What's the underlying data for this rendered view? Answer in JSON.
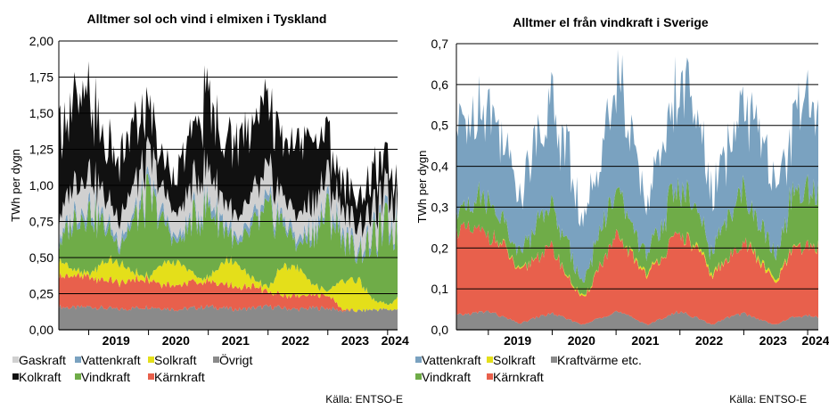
{
  "colors": {
    "Gaskraft": "#d0d0d0",
    "Vattenkraft": "#7aa2c0",
    "Solkraft": "#e4df1a",
    "Övrigt": "#8a8a8a",
    "Kolkraft": "#111111",
    "Vindkraft": "#6fac48",
    "Kärnkraft": "#e8604c",
    "Kraftvärme etc.": "#8a8a8a"
  },
  "chart_data": [
    {
      "type": "area",
      "title": "Alltmer sol och vind i elmixen i Tyskland",
      "ylabel": "TWh per dygn",
      "ylim": [
        0,
        2.0
      ],
      "yticks": [
        "0,00",
        "0,25",
        "0,50",
        "0,75",
        "1,00",
        "1,25",
        "1,50",
        "1,75",
        "2,00"
      ],
      "x_labels": [
        "2019",
        "2020",
        "2021",
        "2022",
        "2023",
        "2024"
      ],
      "x_range": [
        "2018-07",
        "2024-03"
      ],
      "legend": [
        "Gaskraft",
        "Vattenkraft",
        "Solkraft",
        "Övrigt",
        "Kolkraft",
        "Vindkraft",
        "Kärnkraft"
      ],
      "stack_order": [
        "Övrigt",
        "Kärnkraft",
        "Solkraft",
        "Vindkraft",
        "Vattenkraft",
        "Gaskraft",
        "Kolkraft"
      ],
      "x": [
        "2018-07",
        "2018-10",
        "2019-01",
        "2019-04",
        "2019-07",
        "2019-10",
        "2020-01",
        "2020-04",
        "2020-07",
        "2020-10",
        "2021-01",
        "2021-04",
        "2021-07",
        "2021-10",
        "2022-01",
        "2022-04",
        "2022-07",
        "2022-10",
        "2023-01",
        "2023-04",
        "2023-07",
        "2023-10",
        "2024-01",
        "2024-03"
      ],
      "series": [
        {
          "name": "Övrigt",
          "values": [
            0.16,
            0.15,
            0.16,
            0.15,
            0.14,
            0.15,
            0.16,
            0.15,
            0.14,
            0.15,
            0.16,
            0.15,
            0.14,
            0.15,
            0.16,
            0.15,
            0.14,
            0.15,
            0.15,
            0.13,
            0.13,
            0.14,
            0.14,
            0.14
          ]
        },
        {
          "name": "Kärnkraft",
          "values": [
            0.21,
            0.22,
            0.2,
            0.2,
            0.18,
            0.2,
            0.19,
            0.17,
            0.17,
            0.18,
            0.17,
            0.16,
            0.15,
            0.16,
            0.1,
            0.09,
            0.09,
            0.09,
            0.09,
            0.01,
            0.0,
            0.0,
            0.0,
            0.0
          ]
        },
        {
          "name": "Solkraft",
          "values": [
            0.12,
            0.04,
            0.02,
            0.13,
            0.14,
            0.05,
            0.02,
            0.15,
            0.16,
            0.05,
            0.02,
            0.16,
            0.17,
            0.05,
            0.03,
            0.2,
            0.2,
            0.07,
            0.03,
            0.2,
            0.22,
            0.07,
            0.03,
            0.08
          ]
        },
        {
          "name": "Vindkraft",
          "values": [
            0.1,
            0.35,
            0.45,
            0.25,
            0.12,
            0.35,
            0.55,
            0.28,
            0.12,
            0.38,
            0.5,
            0.25,
            0.12,
            0.35,
            0.5,
            0.3,
            0.15,
            0.35,
            0.55,
            0.3,
            0.18,
            0.4,
            0.55,
            0.45
          ]
        },
        {
          "name": "Vattenkraft",
          "values": [
            0.04,
            0.05,
            0.05,
            0.05,
            0.04,
            0.05,
            0.05,
            0.05,
            0.04,
            0.05,
            0.05,
            0.05,
            0.04,
            0.05,
            0.05,
            0.05,
            0.04,
            0.05,
            0.05,
            0.05,
            0.04,
            0.05,
            0.05,
            0.05
          ]
        },
        {
          "name": "Gaskraft",
          "values": [
            0.15,
            0.2,
            0.22,
            0.15,
            0.15,
            0.2,
            0.22,
            0.16,
            0.16,
            0.22,
            0.22,
            0.15,
            0.14,
            0.18,
            0.2,
            0.15,
            0.16,
            0.18,
            0.18,
            0.15,
            0.15,
            0.16,
            0.17,
            0.15
          ]
        },
        {
          "name": "Kolkraft",
          "values": [
            0.62,
            0.55,
            0.55,
            0.35,
            0.4,
            0.4,
            0.3,
            0.2,
            0.3,
            0.35,
            0.5,
            0.4,
            0.55,
            0.5,
            0.45,
            0.4,
            0.5,
            0.45,
            0.3,
            0.2,
            0.2,
            0.25,
            0.2,
            0.15
          ]
        }
      ],
      "source": "Källa: ENTSO-E"
    },
    {
      "type": "area",
      "title": "Alltmer el från vindkraft i Sverige",
      "ylabel": "TWh per dygn",
      "ylim": [
        0,
        0.7
      ],
      "yticks": [
        "0,0",
        "0,1",
        "0,2",
        "0,3",
        "0,4",
        "0,5",
        "0,6",
        "0,7"
      ],
      "x_labels": [
        "2019",
        "2020",
        "2021",
        "2022",
        "2023",
        "2024"
      ],
      "x_range": [
        "2018-07",
        "2024-03"
      ],
      "legend": [
        "Vattenkraft",
        "Solkraft",
        "Kraftvärme etc.",
        "Vindkraft",
        "Kärnkraft"
      ],
      "stack_order": [
        "Kraftvärme etc.",
        "Kärnkraft",
        "Solkraft",
        "Vindkraft",
        "Vattenkraft"
      ],
      "x": [
        "2018-07",
        "2018-10",
        "2019-01",
        "2019-04",
        "2019-07",
        "2019-10",
        "2020-01",
        "2020-04",
        "2020-07",
        "2020-10",
        "2021-01",
        "2021-04",
        "2021-07",
        "2021-10",
        "2022-01",
        "2022-04",
        "2022-07",
        "2022-10",
        "2023-01",
        "2023-04",
        "2023-07",
        "2023-10",
        "2024-01",
        "2024-03"
      ],
      "series": [
        {
          "name": "Kraftvärme etc.",
          "values": [
            0.035,
            0.04,
            0.045,
            0.03,
            0.015,
            0.03,
            0.04,
            0.025,
            0.012,
            0.03,
            0.045,
            0.03,
            0.012,
            0.03,
            0.045,
            0.03,
            0.012,
            0.03,
            0.04,
            0.025,
            0.012,
            0.03,
            0.035,
            0.03
          ]
        },
        {
          "name": "Kärnkraft",
          "values": [
            0.21,
            0.2,
            0.19,
            0.17,
            0.12,
            0.15,
            0.16,
            0.1,
            0.06,
            0.13,
            0.18,
            0.15,
            0.12,
            0.16,
            0.19,
            0.17,
            0.12,
            0.14,
            0.18,
            0.14,
            0.1,
            0.16,
            0.17,
            0.17
          ]
        },
        {
          "name": "Solkraft",
          "values": [
            0.0,
            0.0,
            0.0,
            0.002,
            0.003,
            0.001,
            0.0,
            0.003,
            0.004,
            0.001,
            0.0,
            0.004,
            0.005,
            0.001,
            0.0,
            0.005,
            0.006,
            0.001,
            0.0,
            0.006,
            0.007,
            0.002,
            0.0,
            0.003
          ]
        },
        {
          "name": "Vindkraft",
          "values": [
            0.04,
            0.07,
            0.09,
            0.06,
            0.04,
            0.08,
            0.1,
            0.07,
            0.04,
            0.09,
            0.1,
            0.07,
            0.04,
            0.09,
            0.12,
            0.08,
            0.05,
            0.1,
            0.13,
            0.08,
            0.06,
            0.12,
            0.12,
            0.12
          ]
        },
        {
          "name": "Vattenkraft",
          "values": [
            0.2,
            0.22,
            0.24,
            0.2,
            0.15,
            0.22,
            0.25,
            0.22,
            0.14,
            0.2,
            0.28,
            0.2,
            0.13,
            0.2,
            0.26,
            0.22,
            0.14,
            0.16,
            0.22,
            0.22,
            0.15,
            0.16,
            0.24,
            0.23
          ]
        }
      ],
      "source": "Källa: ENTSO-E"
    }
  ]
}
